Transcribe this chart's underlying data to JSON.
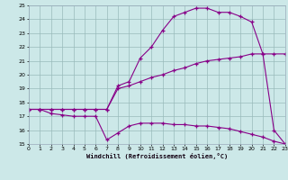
{
  "xlabel": "Windchill (Refroidissement éolien,°C)",
  "bg_color": "#cce8e8",
  "line_color": "#880088",
  "grid_color": "#99bbbb",
  "xlim": [
    0,
    23
  ],
  "ylim": [
    15,
    25
  ],
  "xticks": [
    0,
    1,
    2,
    3,
    4,
    5,
    6,
    7,
    8,
    9,
    10,
    11,
    12,
    13,
    14,
    15,
    16,
    17,
    18,
    19,
    20,
    21,
    22,
    23
  ],
  "yticks": [
    15,
    16,
    17,
    18,
    19,
    20,
    21,
    22,
    23,
    24,
    25
  ],
  "line1_x": [
    0,
    1,
    2,
    3,
    4,
    5,
    6,
    7,
    8,
    9,
    10,
    11,
    12,
    13,
    14,
    15,
    16,
    17,
    18,
    19,
    20,
    21,
    22,
    23
  ],
  "line1_y": [
    17.5,
    17.5,
    17.5,
    17.5,
    17.5,
    17.5,
    17.5,
    17.5,
    19.2,
    19.5,
    21.2,
    22.0,
    23.2,
    24.2,
    24.5,
    24.8,
    24.8,
    24.5,
    24.5,
    24.2,
    23.8,
    21.5,
    16.0,
    15.0
  ],
  "line2_x": [
    0,
    1,
    2,
    3,
    4,
    5,
    6,
    7,
    8,
    9,
    10,
    11,
    12,
    13,
    14,
    15,
    16,
    17,
    18,
    19,
    20,
    21,
    22,
    23
  ],
  "line2_y": [
    17.5,
    17.5,
    17.2,
    17.1,
    17.0,
    17.0,
    17.0,
    15.3,
    15.8,
    16.3,
    16.5,
    16.5,
    16.5,
    16.4,
    16.4,
    16.3,
    16.3,
    16.2,
    16.1,
    15.9,
    15.7,
    15.5,
    15.2,
    15.0
  ],
  "line3_x": [
    0,
    1,
    2,
    3,
    4,
    5,
    6,
    7,
    8,
    9,
    10,
    11,
    12,
    13,
    14,
    15,
    16,
    17,
    18,
    19,
    20,
    21,
    22,
    23
  ],
  "line3_y": [
    17.5,
    17.5,
    17.5,
    17.5,
    17.5,
    17.5,
    17.5,
    17.5,
    19.0,
    19.2,
    19.5,
    19.8,
    20.0,
    20.3,
    20.5,
    20.8,
    21.0,
    21.1,
    21.2,
    21.3,
    21.5,
    21.5,
    21.5,
    21.5
  ]
}
